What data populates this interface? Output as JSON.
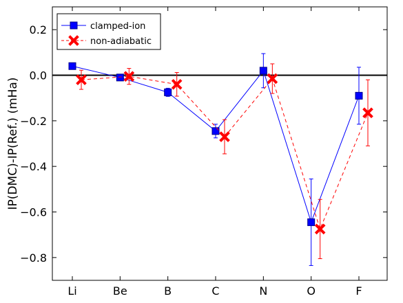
{
  "chart_data": {
    "type": "line",
    "title": "",
    "xlabel": "",
    "ylabel": "IP(DMC)-IP(Ref.) (mHa)",
    "categories": [
      "Li",
      "Be",
      "B",
      "C",
      "N",
      "O",
      "F"
    ],
    "ylim": [
      -0.9,
      0.3
    ],
    "yticks": [
      -0.8,
      -0.6,
      -0.4,
      -0.2,
      0.0,
      0.2
    ],
    "ytick_labels": [
      "−0.8",
      "−0.6",
      "−0.4",
      "−0.2",
      "0.0",
      "0.2"
    ],
    "grid": false,
    "legend_position": "top-left",
    "reference_line": 0.0,
    "series": [
      {
        "name": "clamped-ion",
        "color": "#0000ff",
        "marker": "square",
        "line_style": "solid",
        "values": [
          0.04,
          -0.01,
          -0.075,
          -0.245,
          0.02,
          -0.645,
          -0.09
        ],
        "errors": [
          0.005,
          0.008,
          0.018,
          0.03,
          0.075,
          0.19,
          0.125
        ]
      },
      {
        "name": "non-adiabatic",
        "color": "#ff0000",
        "marker": "x",
        "line_style": "dashed",
        "values": [
          -0.02,
          -0.005,
          -0.04,
          -0.27,
          -0.015,
          -0.675,
          -0.165
        ],
        "errors": [
          0.042,
          0.035,
          0.052,
          0.075,
          0.065,
          0.13,
          0.145
        ]
      }
    ]
  }
}
